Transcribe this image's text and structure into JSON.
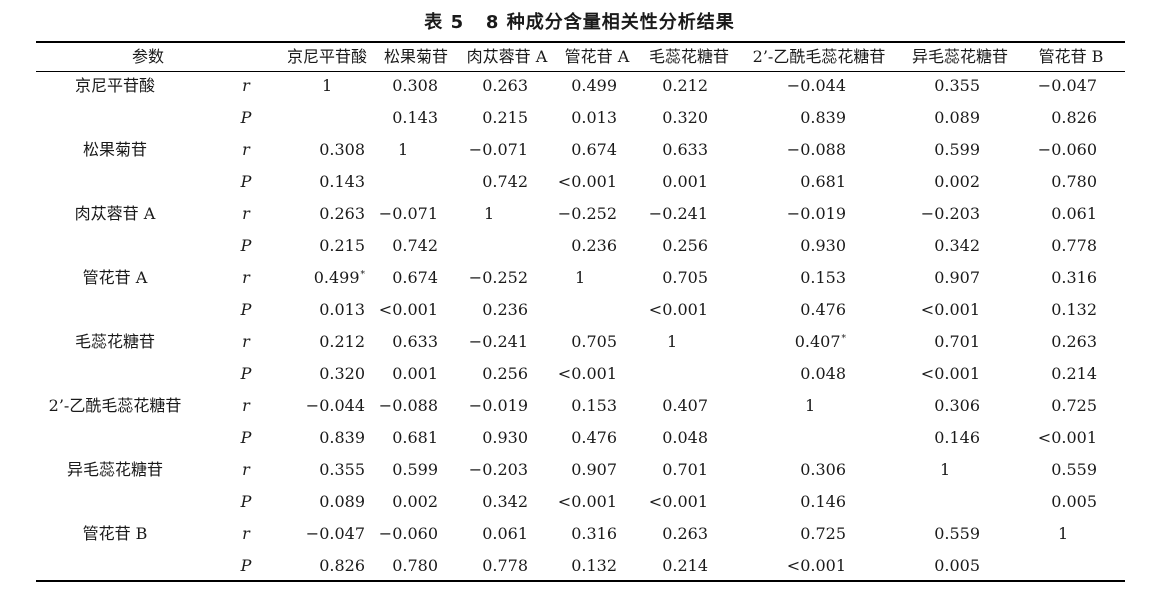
{
  "caption": {
    "label": "表 5",
    "title": "8 种成分含量相关性分析结果"
  },
  "table": {
    "header": {
      "param": "参数",
      "columns": [
        "京尼平苷酸",
        "松果菊苷",
        "肉苁蓉苷 A",
        "管花苷 A",
        "毛蕊花糖苷",
        "2’-乙酰毛蕊花糖苷",
        "异毛蕊花糖苷",
        "管花苷 B"
      ]
    },
    "rows": [
      {
        "name": "京尼平苷酸",
        "r": [
          "1",
          "0.308",
          "0.263",
          "0.499",
          "0.212",
          "−0.044",
          "0.355",
          "−0.047"
        ],
        "r_sup": [
          "",
          "",
          "",
          "",
          "",
          "",
          "",
          ""
        ],
        "P": [
          "",
          "0.143",
          "0.215",
          "0.013",
          "0.320",
          "0.839",
          "0.089",
          "0.826"
        ]
      },
      {
        "name": "松果菊苷",
        "r": [
          "0.308",
          "1",
          "−0.071",
          "0.674",
          "0.633",
          "−0.088",
          "0.599",
          "−0.060"
        ],
        "r_sup": [
          "",
          "",
          "",
          "",
          "",
          "",
          "",
          ""
        ],
        "P": [
          "0.143",
          "",
          "0.742",
          "<0.001",
          "0.001",
          "0.681",
          "0.002",
          "0.780"
        ]
      },
      {
        "name": "肉苁蓉苷 A",
        "r": [
          "0.263",
          "−0.071",
          "1",
          "−0.252",
          "−0.241",
          "−0.019",
          "−0.203",
          "0.061"
        ],
        "r_sup": [
          "",
          "",
          "",
          "",
          "",
          "",
          "",
          ""
        ],
        "P": [
          "0.215",
          "0.742",
          "",
          "0.236",
          "0.256",
          "0.930",
          "0.342",
          "0.778"
        ]
      },
      {
        "name": "管花苷 A",
        "r": [
          "0.499",
          "0.674",
          "−0.252",
          "1",
          "0.705",
          "0.153",
          "0.907",
          "0.316"
        ],
        "r_sup": [
          "*",
          "",
          "",
          "",
          "",
          "",
          "",
          ""
        ],
        "P": [
          "0.013",
          "<0.001",
          "0.236",
          "",
          "<0.001",
          "0.476",
          "<0.001",
          "0.132"
        ]
      },
      {
        "name": "毛蕊花糖苷",
        "r": [
          "0.212",
          "0.633",
          "−0.241",
          "0.705",
          "1",
          "0.407",
          "0.701",
          "0.263"
        ],
        "r_sup": [
          "",
          "",
          "",
          "",
          "",
          "*",
          "",
          ""
        ],
        "P": [
          "0.320",
          "0.001",
          "0.256",
          "<0.001",
          "",
          "0.048",
          "<0.001",
          "0.214"
        ]
      },
      {
        "name": "2’-乙酰毛蕊花糖苷",
        "r": [
          "−0.044",
          "−0.088",
          "−0.019",
          "0.153",
          "0.407",
          "1",
          "0.306",
          "0.725"
        ],
        "r_sup": [
          "",
          "",
          "",
          "",
          "",
          "",
          "",
          ""
        ],
        "P": [
          "0.839",
          "0.681",
          "0.930",
          "0.476",
          "0.048",
          "",
          "0.146",
          "<0.001"
        ]
      },
      {
        "name": "异毛蕊花糖苷",
        "r": [
          "0.355",
          "0.599",
          "−0.203",
          "0.907",
          "0.701",
          "0.306",
          "1",
          "0.559"
        ],
        "r_sup": [
          "",
          "",
          "",
          "",
          "",
          "",
          "",
          ""
        ],
        "P": [
          "0.089",
          "0.002",
          "0.342",
          "<0.001",
          "<0.001",
          "0.146",
          "",
          "0.005"
        ]
      },
      {
        "name": "管花苷 B",
        "r": [
          "−0.047",
          "−0.060",
          "0.061",
          "0.316",
          "0.263",
          "0.725",
          "0.559",
          "1"
        ],
        "r_sup": [
          "",
          "",
          "",
          "",
          "",
          "",
          "",
          ""
        ],
        "P": [
          "0.826",
          "0.780",
          "0.778",
          "0.132",
          "0.214",
          "<0.001",
          "0.005",
          ""
        ]
      }
    ]
  },
  "stats": {
    "r": "r",
    "P": "P"
  }
}
